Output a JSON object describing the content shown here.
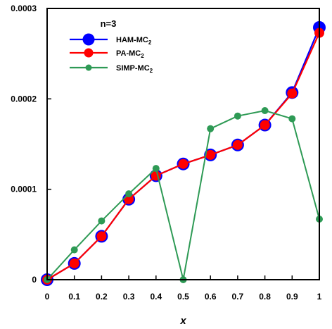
{
  "chart_data": {
    "type": "line",
    "title": "",
    "xlabel": "x",
    "ylabel": "",
    "xlim": [
      0,
      1
    ],
    "ylim": [
      0,
      0.0003
    ],
    "x_ticks": [
      0,
      0.1,
      0.2,
      0.3,
      0.4,
      0.5,
      0.6,
      0.7,
      0.8,
      0.9,
      1
    ],
    "x_tick_labels": [
      "0",
      "0.1",
      "0.2",
      "0.3",
      "0.4",
      "0.5",
      "0.6",
      "0.7",
      "0.8",
      "0.9",
      "1"
    ],
    "y_ticks": [
      0,
      0.0001,
      0.0002,
      0.0003
    ],
    "y_tick_labels": [
      "0",
      "0.0001",
      "0.0002",
      "0.0003"
    ],
    "grid": false,
    "legend_title": "n=3",
    "legend_position": "top-left",
    "x": [
      0,
      0.1,
      0.2,
      0.3,
      0.4,
      0.5,
      0.6,
      0.7,
      0.8,
      0.9,
      1
    ],
    "series": [
      {
        "name": "HAM-MC",
        "name_sub": "2",
        "color": "#0000ff",
        "values": [
          0,
          1.8e-05,
          4.8e-05,
          8.9e-05,
          0.000115,
          0.000128,
          0.000138,
          0.000149,
          0.000171,
          0.000207,
          0.000279
        ]
      },
      {
        "name": "PA-MC",
        "name_sub": "2",
        "color": "#ff0000",
        "values": [
          0,
          1.8e-05,
          4.8e-05,
          8.9e-05,
          0.000115,
          0.000128,
          0.000138,
          0.000149,
          0.000171,
          0.000206,
          0.000273
        ]
      },
      {
        "name": "SIMP-MC",
        "name_sub": "2",
        "color": "#2e9a55",
        "values": [
          0,
          3.3e-05,
          6.5e-05,
          9.5e-05,
          0.000123,
          0,
          0.000167,
          0.000181,
          0.000187,
          0.000178,
          6.7e-05
        ]
      }
    ]
  }
}
